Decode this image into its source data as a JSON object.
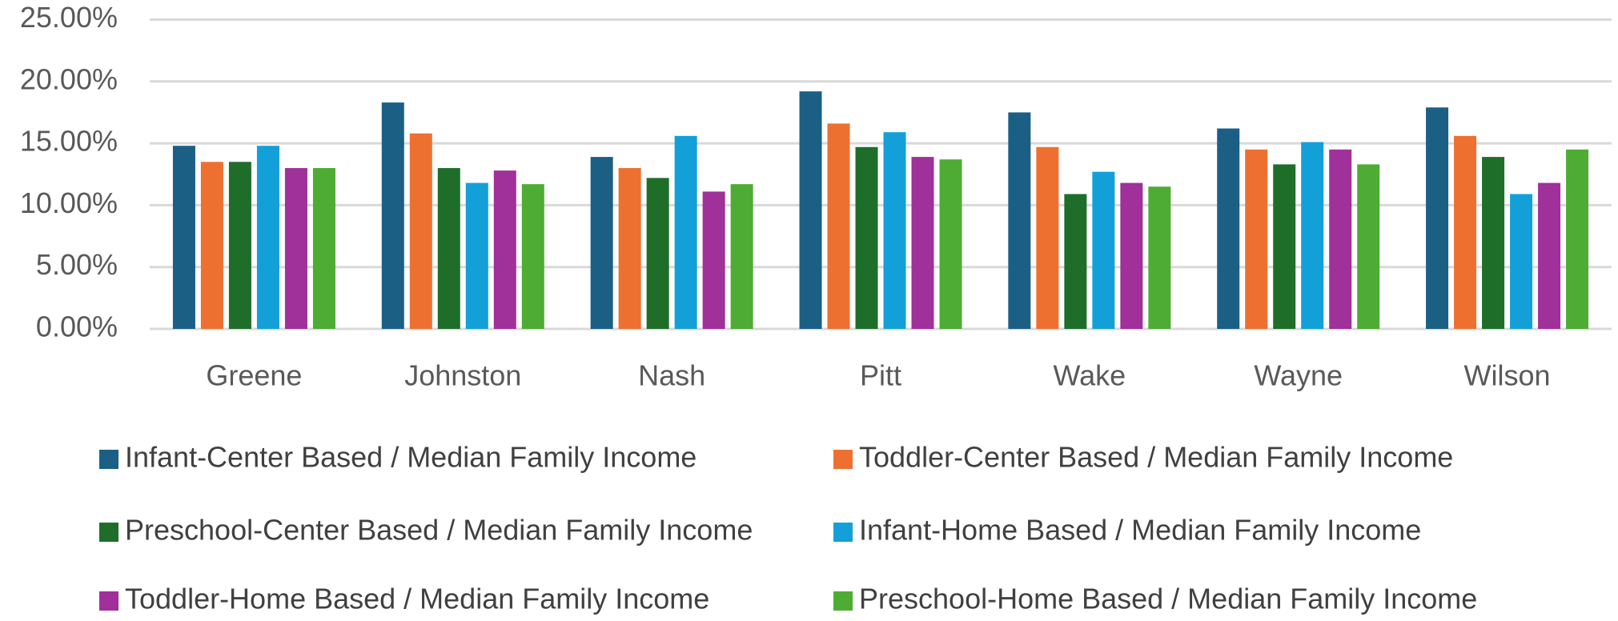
{
  "chart_data": {
    "type": "bar",
    "categories": [
      "Greene",
      "Johnston",
      "Nash",
      "Pitt",
      "Wake",
      "Wayne",
      "Wilson"
    ],
    "series": [
      {
        "name": "Infant-Center Based / Median Family Income",
        "color": "#1b5f85",
        "values": [
          14.8,
          18.3,
          13.9,
          19.2,
          17.5,
          16.2,
          17.9
        ]
      },
      {
        "name": "Toddler-Center Based / Median Family Income",
        "color": "#ed7031",
        "values": [
          13.5,
          15.8,
          13.0,
          16.6,
          14.7,
          14.5,
          15.6
        ]
      },
      {
        "name": "Preschool-Center Based / Median Family Income",
        "color": "#1e6e2a",
        "values": [
          13.5,
          13.0,
          12.2,
          14.7,
          10.9,
          13.3,
          13.9
        ]
      },
      {
        "name": "Infant-Home Based / Median Family Income",
        "color": "#13a0d9",
        "values": [
          14.8,
          11.8,
          15.6,
          15.9,
          12.7,
          15.1,
          10.9
        ]
      },
      {
        "name": "Toddler-Home Based / Median Family Income",
        "color": "#a0309a",
        "values": [
          13.0,
          12.8,
          11.1,
          13.9,
          11.8,
          14.5,
          11.8
        ]
      },
      {
        "name": "Preschool-Home Based / Median Family Income",
        "color": "#4eac34",
        "values": [
          13.0,
          11.7,
          11.7,
          13.7,
          11.5,
          13.3,
          14.5
        ]
      }
    ],
    "ylim": [
      0,
      25
    ],
    "yticks": [
      {
        "value": 0,
        "label": "0.00%"
      },
      {
        "value": 5,
        "label": "5.00%"
      },
      {
        "value": 10,
        "label": "10.00%"
      },
      {
        "value": 15,
        "label": "15.00%"
      },
      {
        "value": 20,
        "label": "20.00%"
      },
      {
        "value": 25,
        "label": "25.00%"
      }
    ],
    "grid": true,
    "legend": "bottom"
  }
}
